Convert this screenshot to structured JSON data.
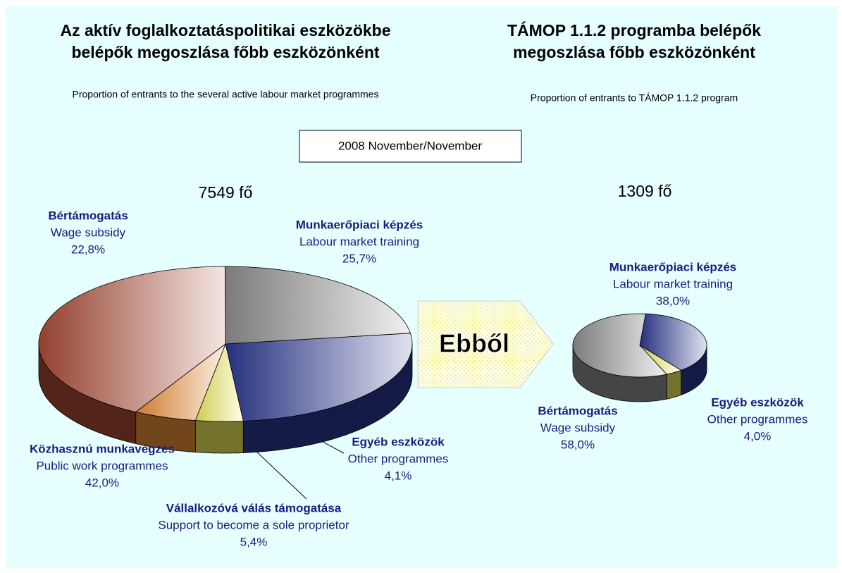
{
  "period": "2008 November/November",
  "arrow_label": "Ebből",
  "chart_data": [
    {
      "type": "pie",
      "title": [
        "Az aktív foglalkoztatáspolitikai eszközökbe",
        "belépők megoszlása főbb eszközönként"
      ],
      "subtitle": "Proportion of entrants to the several active labour market programmes",
      "total": "7549 fő",
      "categories": [
        "Munkaerőpiaci képzés",
        "Egyéb eszközök",
        "Vállalkozóvá válás támogatása",
        "Közhasznú munkavégzés",
        "Bértámogatás"
      ],
      "category_translations": [
        "Labour market training",
        "Other programmes",
        "Support to become a sole proprietor",
        "Public work programmes",
        "Wage subsidy"
      ],
      "values": [
        25.7,
        4.1,
        5.4,
        42.0,
        22.8
      ],
      "value_labels": [
        "25,7%",
        "4,1%",
        "5,4%",
        "42,0%",
        "22,8%"
      ],
      "colors": [
        "#2d3c9c",
        "#ffff66",
        "#ff9a3c",
        "#b8503a",
        "#9a9a9a"
      ]
    },
    {
      "type": "pie",
      "title": [
        "TÁMOP 1.1.2 programba belépők",
        "megoszlása főbb eszközönként"
      ],
      "subtitle": "Proportion of entrants to TÁMOP 1.1.2 program",
      "total": "1309 fő",
      "categories": [
        "Munkaerőpiaci képzés",
        "Egyéb eszközök",
        "Bértámogatás"
      ],
      "category_translations": [
        "Labour market training",
        "Other programmes",
        "Wage subsidy"
      ],
      "values": [
        38.0,
        4.0,
        58.0
      ],
      "value_labels": [
        "38,0%",
        "4,0%",
        "58,0%"
      ],
      "colors": [
        "#2d3c9c",
        "#ffff66",
        "#9a9a9a"
      ]
    }
  ]
}
